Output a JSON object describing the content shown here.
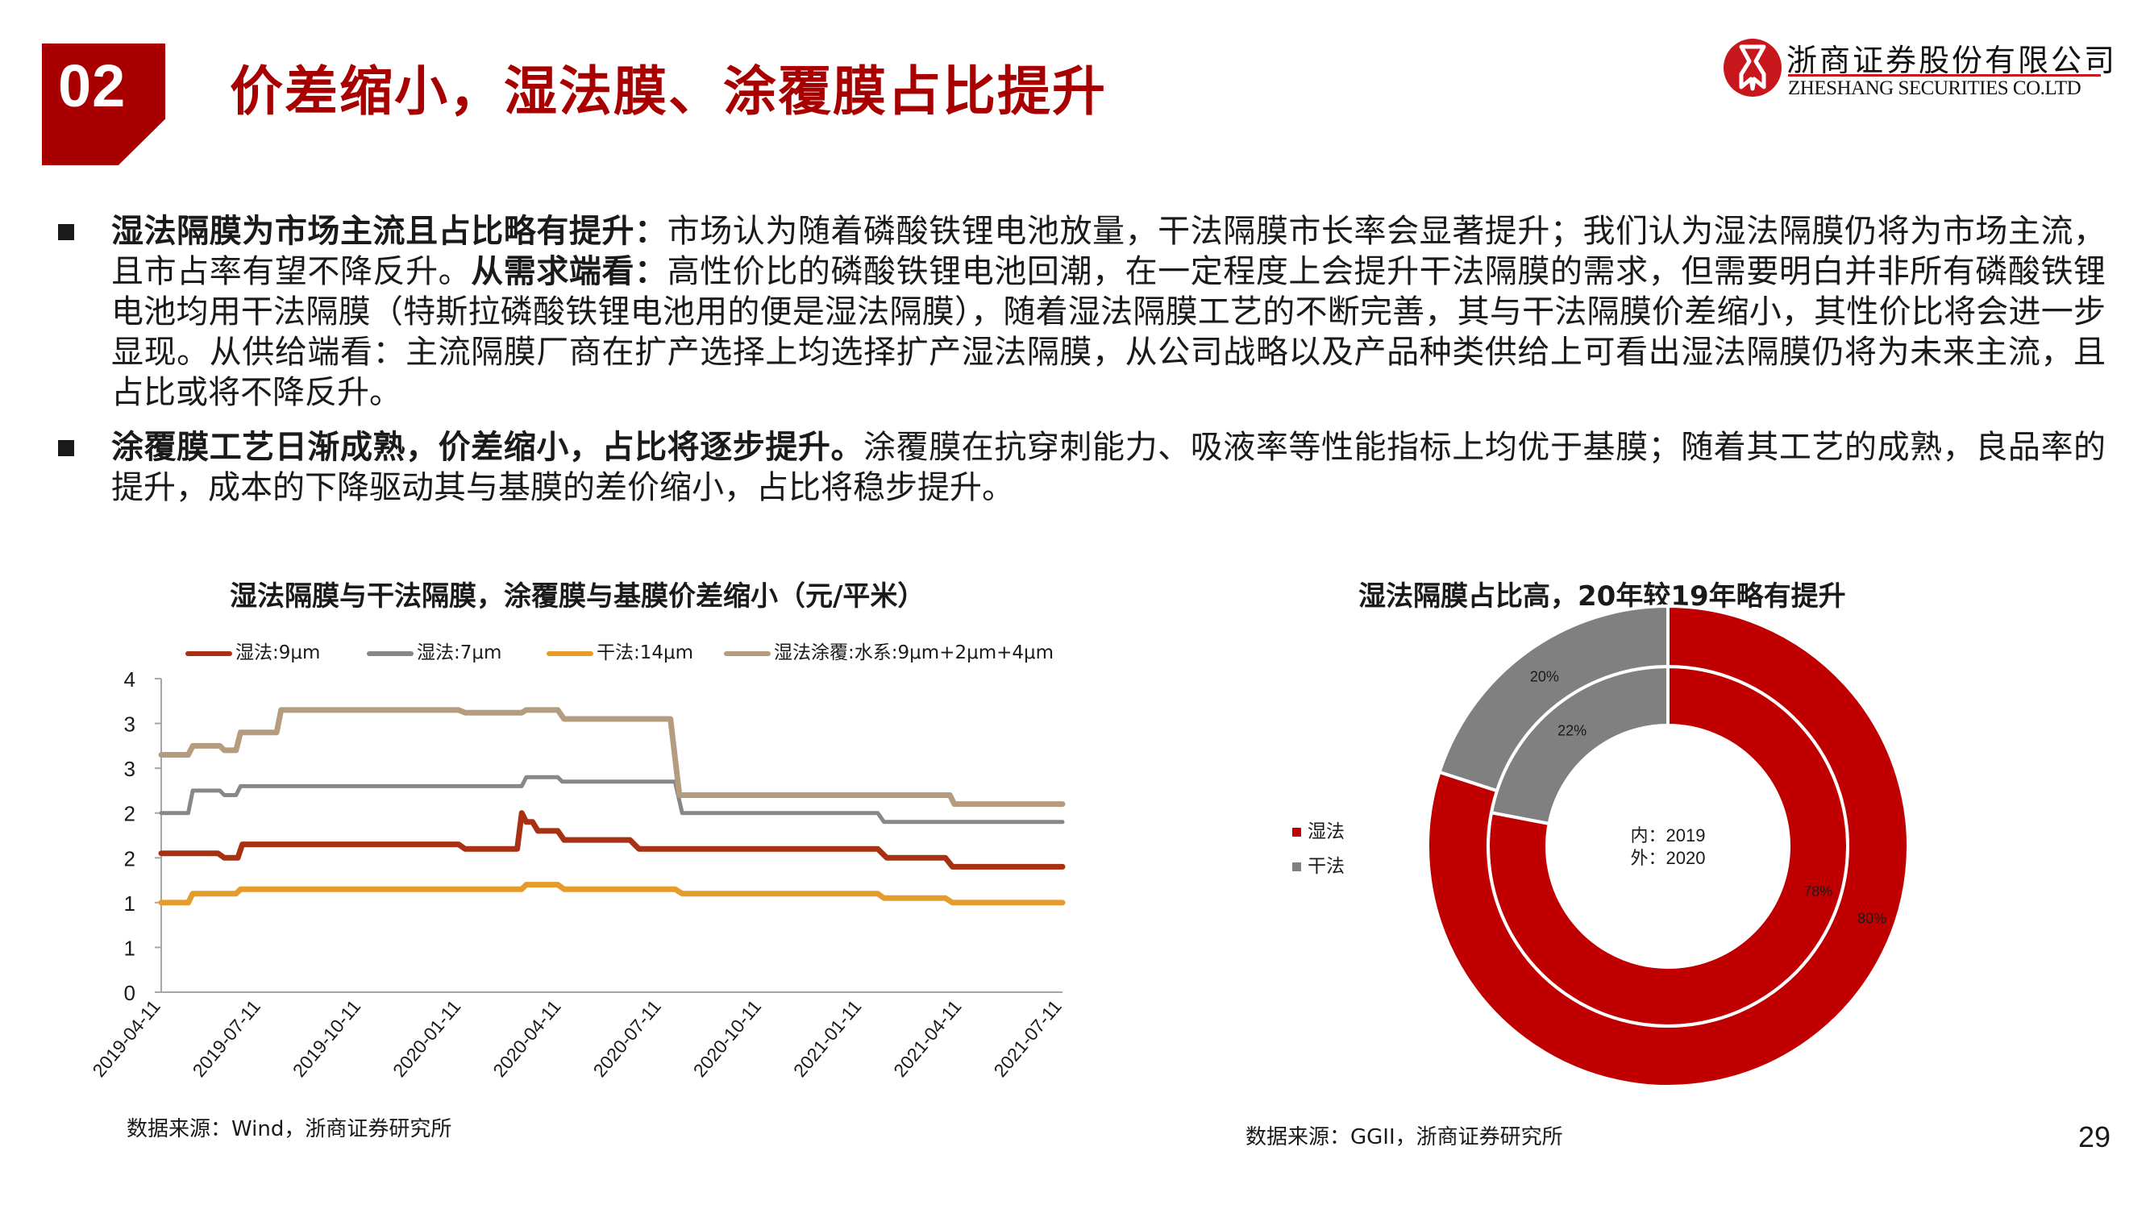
{
  "header": {
    "section_number": "02",
    "title": "价差缩小，湿法膜、涂覆膜占比提升",
    "logo": {
      "name_cn": "浙商证券股份有限公司",
      "name_en": "ZHESHANG SECURITIES CO.LTD"
    }
  },
  "bullets": [
    {
      "segments": [
        {
          "text": "湿法隔膜为市场主流且占比略有提升：",
          "bold": true
        },
        {
          "text": "市场认为随着磷酸铁锂电池放量，干法隔膜市长率会显著提升；我们认为湿法隔膜仍将为市场主流，且市占率有望不降反升。",
          "bold": false
        },
        {
          "text": "从需求端看：",
          "bold": true
        },
        {
          "text": "高性价比的磷酸铁锂电池回潮，在一定程度上会提升干法隔膜的需求，但需要明白并非所有磷酸铁锂电池均用干法隔膜（特斯拉磷酸铁锂电池用的便是湿法隔膜），随着湿法隔膜工艺的不断完善，其与干法隔膜价差缩小，其性价比将会进一步显现。从供给端看：主流隔膜厂商在扩产选择上均选择扩产湿法隔膜，从公司战略以及产品种类供给上可看出湿法隔膜仍将为未来主流，且占比或将不降反升。",
          "bold": false
        }
      ]
    },
    {
      "segments": [
        {
          "text": "涂覆膜工艺日渐成熟，价差缩小，占比将逐步提升。",
          "bold": true
        },
        {
          "text": "涂覆膜在抗穿刺能力、吸液率等性能指标上均优于基膜；随着其工艺的成熟，良品率的提升，成本的下降驱动其与基膜的差价缩小，占比将稳步提升。",
          "bold": false
        }
      ]
    }
  ],
  "left_chart": {
    "title": "湿法隔膜与干法隔膜，涂覆膜与基膜价差缩小（元/平米）",
    "source": "数据来源：Wind，浙商证券研究所"
  },
  "right_chart": {
    "title": "湿法隔膜占比高，20年较19年略有提升",
    "source": "数据来源：GGII，浙商证券研究所",
    "center_label_inner": "内：2019",
    "center_label_outer": "外：2020"
  },
  "page_number": "29",
  "colors": {
    "brand_red": "#A80000",
    "wet_9um": "#A93113",
    "wet_7um": "#878787",
    "dry_14um": "#E69C2A",
    "coated": "#B59C7E",
    "donut_wet": "#C00000",
    "donut_dry": "#808080"
  },
  "chart_data": [
    {
      "type": "line",
      "title": "湿法隔膜与干法隔膜，涂覆膜与基膜价差缩小（元/平米）",
      "xlabel": "",
      "ylabel": "元/平米",
      "ylim": [
        0,
        3.5
      ],
      "yticks": [
        0,
        0.5,
        1,
        1.5,
        2,
        2.5,
        3,
        3.5
      ],
      "ytick_labels": [
        "0",
        "1",
        "1",
        "2",
        "2",
        "3",
        "3",
        "4"
      ],
      "xticks": [
        "2019-04-11",
        "2019-07-11",
        "2019-10-11",
        "2020-01-11",
        "2020-04-11",
        "2020-07-11",
        "2020-10-11",
        "2021-01-11",
        "2021-04-11",
        "2021-07-11"
      ],
      "legend_position": "top",
      "grid": false,
      "step": true,
      "x_unit": "fraction of axis (0 = 2019-04-11, 1 = 2021-07-11)",
      "series": [
        {
          "name": "湿法:9μm",
          "color": "#A93113",
          "points": [
            [
              0,
              1.55
            ],
            [
              0.063,
              1.55
            ],
            [
              0.07,
              1.5
            ],
            [
              0.085,
              1.5
            ],
            [
              0.09,
              1.65
            ],
            [
              0.33,
              1.65
            ],
            [
              0.337,
              1.6
            ],
            [
              0.395,
              1.6
            ],
            [
              0.4,
              2.0
            ],
            [
              0.405,
              1.9
            ],
            [
              0.412,
              1.9
            ],
            [
              0.418,
              1.8
            ],
            [
              0.44,
              1.8
            ],
            [
              0.447,
              1.7
            ],
            [
              0.52,
              1.7
            ],
            [
              0.53,
              1.6
            ],
            [
              0.795,
              1.6
            ],
            [
              0.805,
              1.5
            ],
            [
              0.87,
              1.5
            ],
            [
              0.878,
              1.4
            ],
            [
              1,
              1.4
            ]
          ]
        },
        {
          "name": "湿法:7μm",
          "color": "#878787",
          "points": [
            [
              0,
              2.0
            ],
            [
              0.03,
              2.0
            ],
            [
              0.035,
              2.25
            ],
            [
              0.065,
              2.25
            ],
            [
              0.07,
              2.2
            ],
            [
              0.083,
              2.2
            ],
            [
              0.088,
              2.3
            ],
            [
              0.4,
              2.3
            ],
            [
              0.405,
              2.4
            ],
            [
              0.44,
              2.4
            ],
            [
              0.445,
              2.35
            ],
            [
              0.57,
              2.35
            ],
            [
              0.578,
              2.0
            ],
            [
              0.795,
              2.0
            ],
            [
              0.802,
              1.9
            ],
            [
              1,
              1.9
            ]
          ]
        },
        {
          "name": "干法:14μm",
          "color": "#E69C2A",
          "points": [
            [
              0,
              1.0
            ],
            [
              0.03,
              1.0
            ],
            [
              0.035,
              1.1
            ],
            [
              0.083,
              1.1
            ],
            [
              0.088,
              1.15
            ],
            [
              0.4,
              1.15
            ],
            [
              0.405,
              1.2
            ],
            [
              0.44,
              1.2
            ],
            [
              0.447,
              1.15
            ],
            [
              0.57,
              1.15
            ],
            [
              0.578,
              1.1
            ],
            [
              0.795,
              1.1
            ],
            [
              0.802,
              1.05
            ],
            [
              0.87,
              1.05
            ],
            [
              0.878,
              1.0
            ],
            [
              1,
              1.0
            ]
          ]
        },
        {
          "name": "湿法涂覆:水系:9μm+2μm+4μm",
          "color": "#B59C7E",
          "points": [
            [
              0,
              2.65
            ],
            [
              0.03,
              2.65
            ],
            [
              0.035,
              2.75
            ],
            [
              0.065,
              2.75
            ],
            [
              0.07,
              2.7
            ],
            [
              0.083,
              2.7
            ],
            [
              0.088,
              2.9
            ],
            [
              0.128,
              2.9
            ],
            [
              0.133,
              3.15
            ],
            [
              0.33,
              3.15
            ],
            [
              0.337,
              3.12
            ],
            [
              0.4,
              3.12
            ],
            [
              0.405,
              3.15
            ],
            [
              0.44,
              3.15
            ],
            [
              0.447,
              3.05
            ],
            [
              0.565,
              3.05
            ],
            [
              0.575,
              2.2
            ],
            [
              0.875,
              2.2
            ],
            [
              0.88,
              2.1
            ],
            [
              1,
              2.1
            ]
          ]
        }
      ]
    },
    {
      "type": "pie",
      "subtype": "double-donut",
      "title": "湿法隔膜占比高，20年较19年略有提升",
      "legend_position": "left",
      "legend": [
        "湿法",
        "干法"
      ],
      "rings": [
        {
          "name": "内：2019",
          "labels": [
            "湿法",
            "干法"
          ],
          "values": [
            78,
            22
          ],
          "value_labels": [
            "78%",
            "22%"
          ]
        },
        {
          "name": "外：2020",
          "labels": [
            "湿法",
            "干法"
          ],
          "values": [
            80,
            20
          ],
          "value_labels": [
            "80%",
            "20%"
          ]
        }
      ]
    }
  ]
}
